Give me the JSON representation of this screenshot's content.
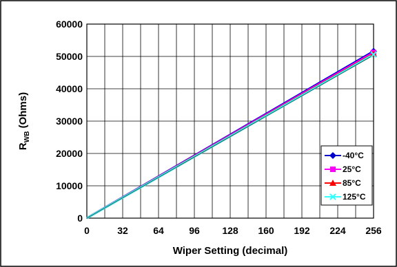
{
  "chart_data": {
    "type": "line",
    "title": "",
    "xlabel": "Wiper Setting (decimal)",
    "ylabel_main": "R",
    "ylabel_sub": "WB",
    "ylabel_rest": " (Ohms)",
    "xlim": [
      0,
      256
    ],
    "ylim": [
      0,
      60000
    ],
    "x_ticks": [
      "0",
      "32",
      "64",
      "96",
      "128",
      "160",
      "192",
      "224",
      "256"
    ],
    "y_ticks": [
      "0",
      "10000",
      "20000",
      "30000",
      "40000",
      "50000",
      "60000"
    ],
    "x_tick_values": [
      0,
      32,
      64,
      96,
      128,
      160,
      192,
      224,
      256
    ],
    "y_tick_values": [
      0,
      10000,
      20000,
      30000,
      40000,
      50000,
      60000
    ],
    "x_grid_values": [
      0,
      16,
      32,
      48,
      64,
      80,
      96,
      112,
      128,
      144,
      160,
      176,
      192,
      208,
      224,
      240,
      256
    ],
    "grid": true,
    "legend_position": "bottom-right",
    "series": [
      {
        "name": "-40°C",
        "color": "#0000cc",
        "marker": "diamond",
        "x": [
          0,
          256
        ],
        "y": [
          0,
          51600
        ]
      },
      {
        "name": "25°C",
        "color": "#ff00ff",
        "marker": "square",
        "x": [
          0,
          256
        ],
        "y": [
          0,
          51200
        ]
      },
      {
        "name": "85°C",
        "color": "#ff0000",
        "marker": "triangle",
        "x": [
          0,
          256
        ],
        "y": [
          0,
          50800
        ]
      },
      {
        "name": "125°C",
        "color": "#33ffff",
        "marker": "x",
        "x": [
          0,
          256
        ],
        "y": [
          0,
          50600
        ]
      }
    ]
  }
}
